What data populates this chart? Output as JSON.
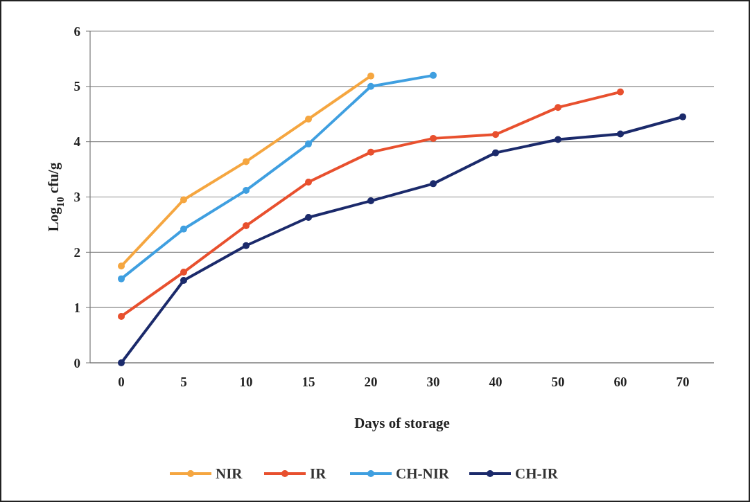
{
  "chart_data": {
    "type": "line",
    "xlabel": "Days of storage",
    "ylabel": "Log$_{10}$ cfu/g",
    "categories": [
      "0",
      "5",
      "10",
      "15",
      "20",
      "30",
      "40",
      "50",
      "60",
      "70"
    ],
    "ylim": [
      0,
      6
    ],
    "yticks": [
      0,
      1,
      2,
      3,
      4,
      5,
      6
    ],
    "grid": "y",
    "legend": "bottom",
    "marker": "circle",
    "line_style": "solid",
    "series": [
      {
        "name": "NIR",
        "color": "#f5a640",
        "values": [
          1.75,
          2.95,
          3.64,
          4.41,
          5.19,
          null,
          null,
          null,
          null,
          null
        ]
      },
      {
        "name": "IR",
        "color": "#e8502e",
        "values": [
          0.84,
          1.64,
          2.48,
          3.27,
          3.81,
          4.06,
          4.13,
          4.62,
          4.9,
          null
        ]
      },
      {
        "name": "CH-NIR",
        "color": "#3f9fe0",
        "values": [
          1.52,
          2.42,
          3.12,
          3.96,
          5.0,
          5.2,
          null,
          null,
          null,
          null
        ]
      },
      {
        "name": "CH-IR",
        "color": "#1b2a6b",
        "values": [
          0,
          1.49,
          2.12,
          2.63,
          2.93,
          3.24,
          3.8,
          4.04,
          4.14,
          4.45
        ]
      }
    ]
  }
}
